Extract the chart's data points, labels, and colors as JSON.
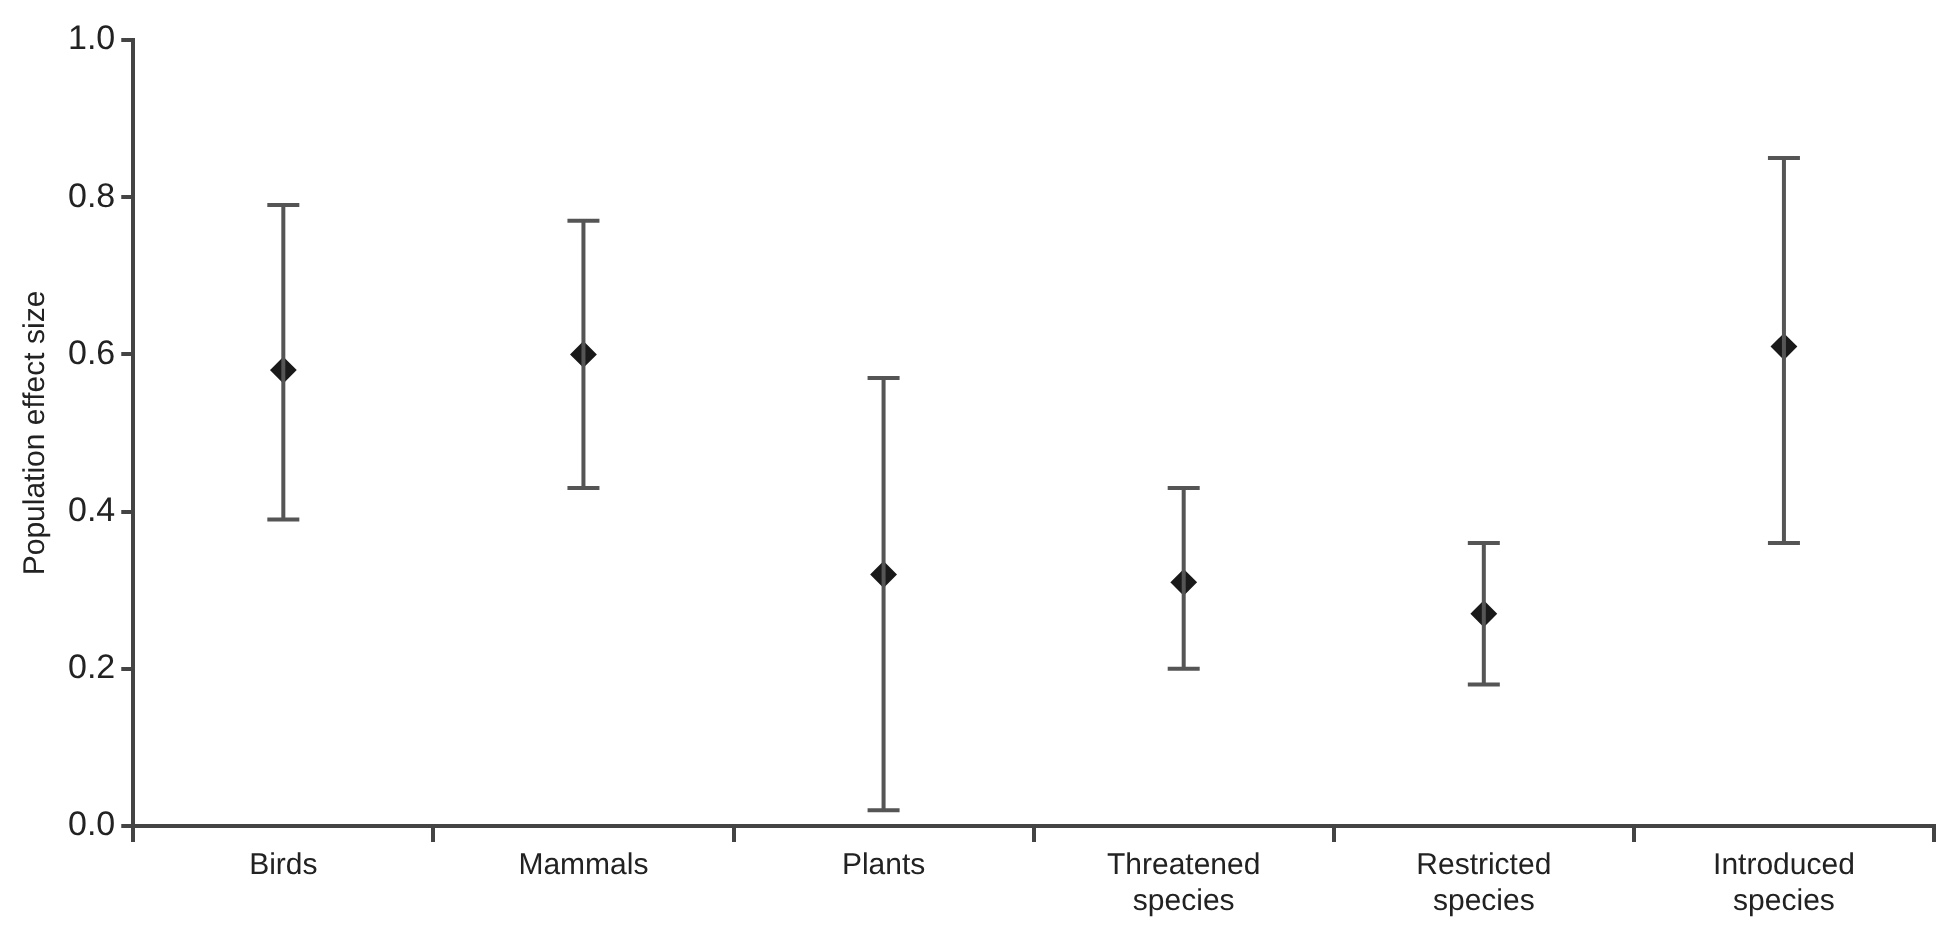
{
  "chart_data": {
    "type": "scatter",
    "ylabel": "Population effect size",
    "categories": [
      "Birds",
      "Mammals",
      "Plants",
      "Threatened species",
      "Restricted species",
      "Introduced species"
    ],
    "values": [
      0.58,
      0.6,
      0.32,
      0.31,
      0.27,
      0.61
    ],
    "errors": [
      [
        0.39,
        0.79
      ],
      [
        0.43,
        0.77
      ],
      [
        0.02,
        0.57
      ],
      [
        0.2,
        0.43
      ],
      [
        0.18,
        0.36
      ],
      [
        0.36,
        0.85
      ]
    ],
    "color": "#1a1a1a",
    "marker": "diamond",
    "ylim": [
      0,
      1
    ],
    "yticks": [
      {
        "value": 0,
        "label": "0.0"
      },
      0.2,
      0.4,
      0.6,
      0.8,
      {
        "value": 1,
        "label": "1.0"
      }
    ],
    "grid": false,
    "legend": false
  }
}
